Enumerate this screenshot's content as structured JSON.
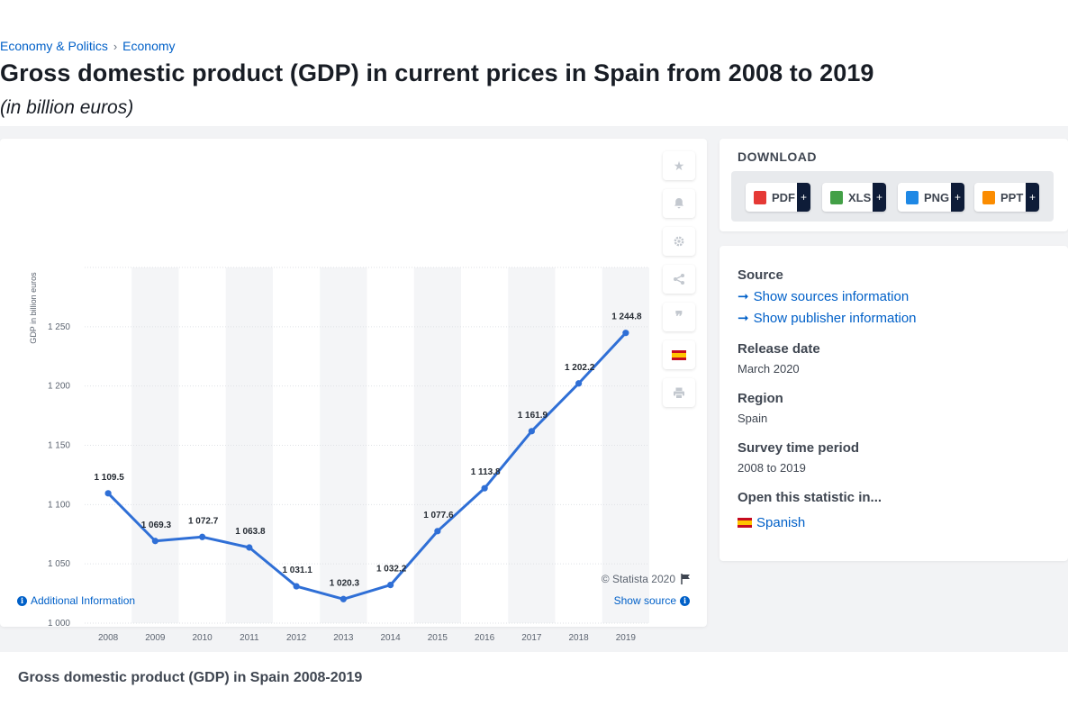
{
  "breadcrumb": [
    "Economy & Politics",
    "Economy"
  ],
  "title": "Gross domestic product (GDP) in current prices in Spain from 2008 to 2019",
  "subtitle": "(in billion euros)",
  "chart_data": {
    "type": "line",
    "title": "",
    "ylabel": "GDP in billion euros",
    "xlabel": "",
    "ylim": [
      1000,
      1300
    ],
    "yticks": [
      1000,
      1050,
      1100,
      1150,
      1200,
      1250
    ],
    "ytick_labels": [
      "1 000",
      "1 050",
      "1 100",
      "1 150",
      "1 200",
      "1 250"
    ],
    "categories": [
      "2008",
      "2009",
      "2010",
      "2011",
      "2012",
      "2013",
      "2014",
      "2015",
      "2016",
      "2017",
      "2018",
      "2019"
    ],
    "values": [
      1109.5,
      1069.3,
      1072.7,
      1063.8,
      1031.1,
      1020.3,
      1032.2,
      1077.6,
      1113.8,
      1161.9,
      1202.2,
      1244.8
    ],
    "value_labels": [
      "1 109.5",
      "1 069.3",
      "1 072.7",
      "1 063.8",
      "1 031.1",
      "1 020.3",
      "1 032.2",
      "1 077.6",
      "1 113.8",
      "1 161.9",
      "1 202.2",
      "1 244.8"
    ],
    "line_color": "#2f6fd6",
    "grid": true,
    "legend": "none"
  },
  "chart_footer": {
    "copyright": "© Statista 2020",
    "additional_info": "Additional Information",
    "show_source": "Show source"
  },
  "tools": [
    "star-icon",
    "bell-icon",
    "gear-icon",
    "share-icon",
    "quote-icon",
    "spain-flag-icon",
    "print-icon"
  ],
  "download": {
    "heading": "DOWNLOAD",
    "buttons": [
      {
        "label": "PDF",
        "color": "#e53935"
      },
      {
        "label": "XLS",
        "color": "#43a047"
      },
      {
        "label": "PNG",
        "color": "#1e88e5"
      },
      {
        "label": "PPT",
        "color": "#fb8c00"
      }
    ],
    "plus": "+"
  },
  "info": {
    "source_heading": "Source",
    "sources_link": "Show sources information",
    "publisher_link": "Show publisher information",
    "release_heading": "Release date",
    "release_value": "March 2020",
    "region_heading": "Region",
    "region_value": "Spain",
    "survey_heading": "Survey time period",
    "survey_value": "2008 to 2019",
    "open_heading": "Open this statistic in...",
    "open_link": "Spanish"
  },
  "bottom": {
    "title": "Gross domestic product (GDP) in Spain 2008-2019"
  }
}
